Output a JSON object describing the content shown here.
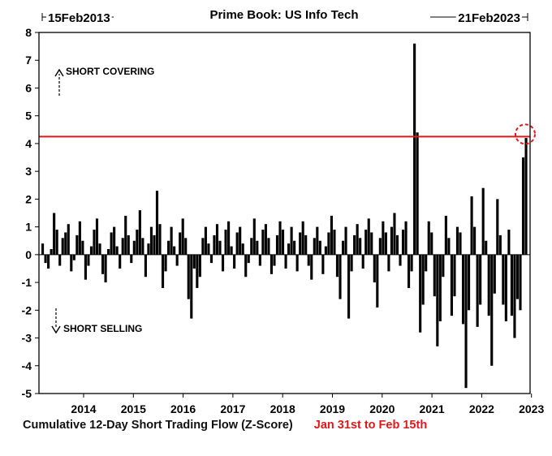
{
  "chart_data": {
    "type": "bar",
    "title": "Prime Book: US Info Tech",
    "start_label": "15Feb2013",
    "end_label": "21Feb2023",
    "ylim": [
      -5,
      8
    ],
    "yticks": [
      "8",
      "7",
      "6",
      "5",
      "4",
      "3",
      "2",
      "1",
      "0",
      "-1",
      "-2",
      "-3",
      "-4",
      "-5"
    ],
    "xticks": [
      "2014",
      "2015",
      "2016",
      "2017",
      "2018",
      "2019",
      "2020",
      "2021",
      "2022",
      "2023"
    ],
    "annotations": {
      "up": "SHORT COVERING",
      "down": "SHORT SELLING"
    },
    "reference_line": {
      "y": 4.25,
      "color": "#e0181b"
    },
    "xlabel": "Cumulative 12-Day Short Trading Flow (Z-Score)",
    "highlight_note": "Jan 31st to Feb 15th",
    "series": [
      {
        "values": [
          0.4,
          -0.3,
          -0.5,
          0.2,
          1.5,
          0.9,
          -0.4,
          0.6,
          0.8,
          1.1,
          -0.6,
          -0.2,
          0.7,
          1.2,
          0.5,
          -0.9,
          -0.4,
          0.3,
          0.9,
          1.3,
          0.4,
          -0.7,
          -1.0,
          0.2,
          0.8,
          1.0,
          0.3,
          -0.5,
          0.6,
          1.4,
          0.7,
          -0.3,
          0.5,
          0.9,
          1.6,
          0.6,
          -0.8,
          0.4,
          1.0,
          0.7,
          2.3,
          1.1,
          -1.2,
          -0.6,
          0.5,
          1.0,
          0.3,
          -0.4,
          0.8,
          1.3,
          0.6,
          -1.6,
          -2.3,
          -0.5,
          -1.2,
          -0.8,
          0.6,
          1.0,
          0.4,
          -0.3,
          0.7,
          1.1,
          0.5,
          -0.6,
          0.9,
          1.2,
          0.3,
          -0.5,
          0.8,
          1.0,
          0.4,
          -0.8,
          -0.3,
          0.6,
          1.3,
          0.5,
          -0.4,
          0.9,
          1.1,
          0.6,
          -0.7,
          -0.4,
          0.7,
          1.2,
          0.9,
          -0.5,
          0.4,
          1.0,
          0.5,
          -0.6,
          0.8,
          1.2,
          0.7,
          -0.4,
          -0.9,
          0.6,
          1.0,
          0.5,
          -0.7,
          0.3,
          0.8,
          1.4,
          0.9,
          -0.8,
          -1.6,
          0.5,
          1.0,
          -2.3,
          -0.6,
          0.7,
          1.1,
          0.6,
          -0.5,
          0.9,
          1.3,
          0.8,
          -1.0,
          -1.9,
          0.6,
          1.2,
          0.8,
          -0.6,
          1.0,
          1.5,
          0.7,
          -0.4,
          0.9,
          1.2,
          -1.2,
          -0.6,
          7.6,
          4.4,
          -2.8,
          -1.8,
          -0.6,
          1.2,
          0.8,
          -1.5,
          -3.3,
          -2.4,
          -0.8,
          1.4,
          0.6,
          -2.2,
          -1.5,
          1.0,
          0.8,
          -2.5,
          -4.8,
          -2.0,
          2.1,
          1.0,
          -2.6,
          -1.8,
          2.4,
          0.5,
          -2.2,
          -4.0,
          -1.4,
          2.0,
          0.7,
          -1.8,
          -2.4,
          0.9,
          -2.2,
          -3.0,
          -1.6,
          -2.0,
          3.5,
          4.2
        ]
      }
    ]
  }
}
